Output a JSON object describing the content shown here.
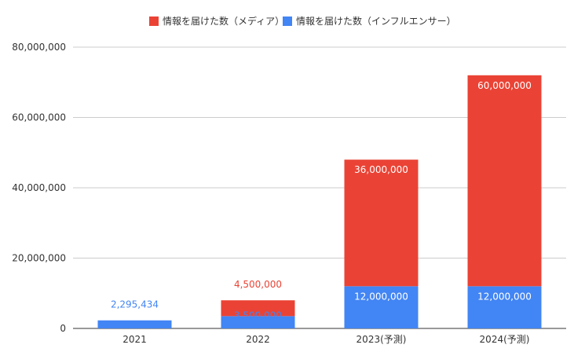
{
  "chart_data": {
    "type": "bar",
    "stacked": true,
    "categories": [
      "2021",
      "2022",
      "2023(予測)",
      "2024(予測)"
    ],
    "series": [
      {
        "name": "情報を届けた数（インフルエンサー）",
        "color": "#4285f4",
        "values": [
          2295434,
          3500000,
          12000000,
          12000000
        ],
        "labels": [
          "2,295,434",
          "3,500,000",
          "12,000,000",
          "12,000,000"
        ]
      },
      {
        "name": "情報を届けた数（メディア）",
        "color": "#ea4335",
        "values": [
          0,
          4500000,
          36000000,
          60000000
        ],
        "labels": [
          "",
          "4,500,000",
          "36,000,000",
          "60,000,000"
        ]
      }
    ],
    "legend_order": [
      1,
      0
    ],
    "legend_position": "top",
    "ylim": [
      0,
      80000000
    ],
    "yticks": [
      0,
      20000000,
      40000000,
      60000000,
      80000000
    ],
    "ytick_labels": [
      "0",
      "20,000,000",
      "40,000,000",
      "60,000,000",
      "80,000,000"
    ],
    "grid": true,
    "title": "",
    "xlabel": "",
    "ylabel": ""
  }
}
